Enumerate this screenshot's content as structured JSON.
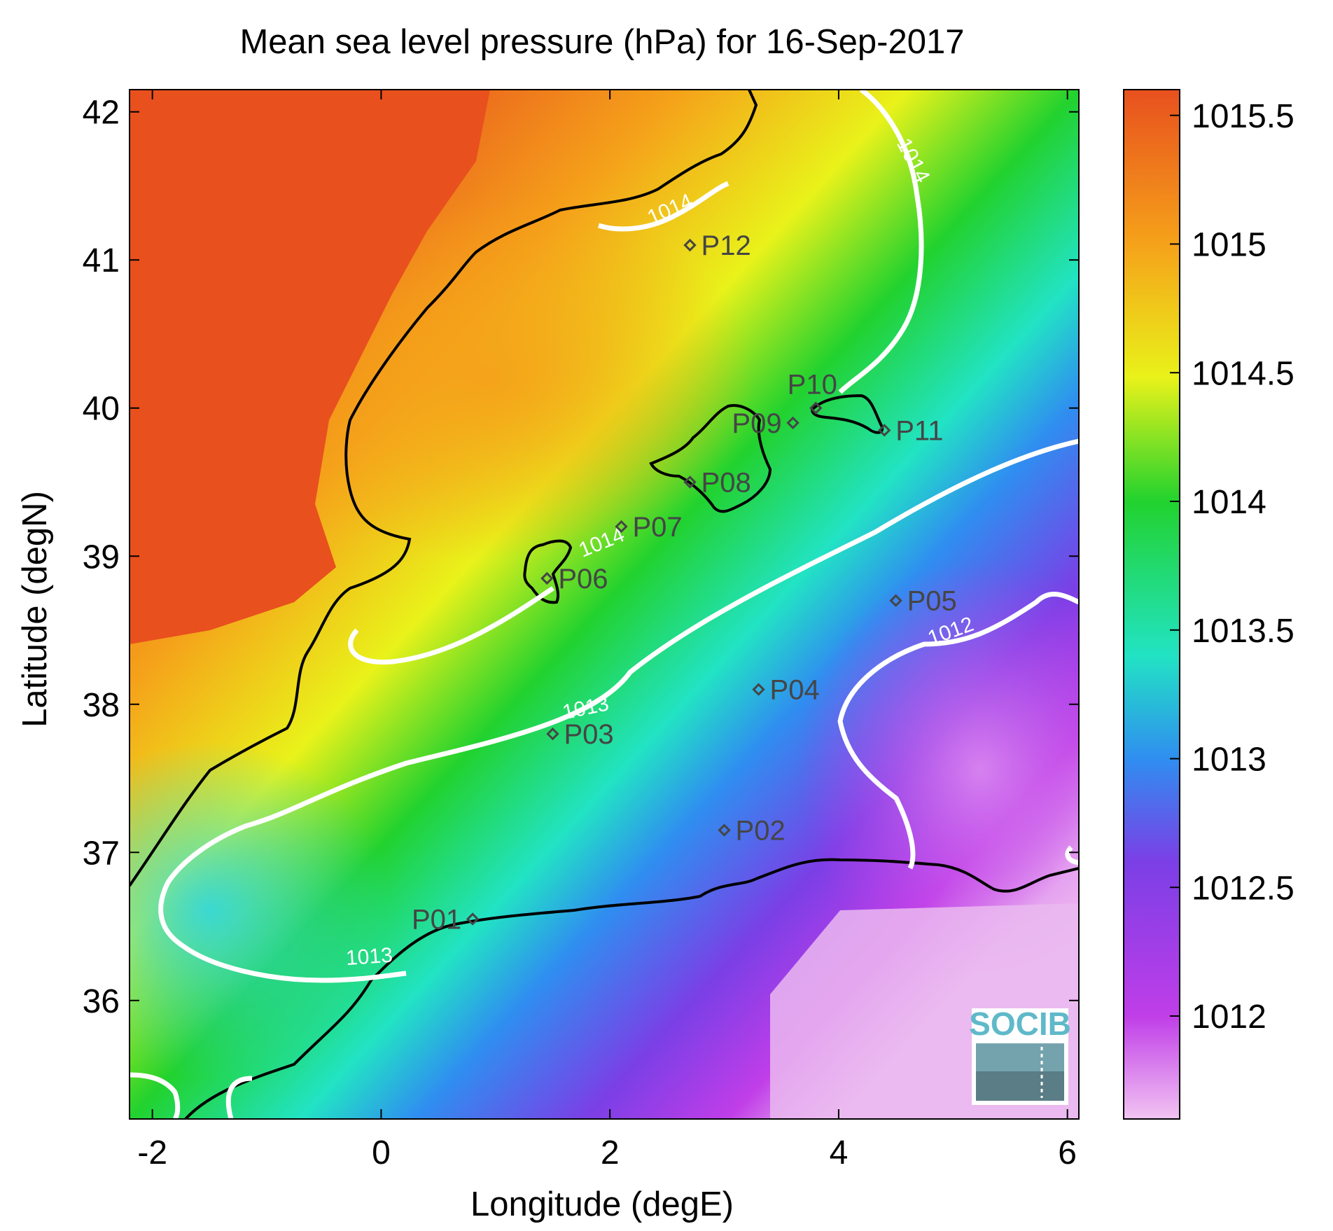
{
  "title": "Mean sea level pressure (hPa) for 16-Sep-2017",
  "x_axis": {
    "label": "Longitude (degE)",
    "range": [
      -2.2,
      6.1
    ],
    "ticks": [
      {
        "value": -2,
        "label": "-2"
      },
      {
        "value": 0,
        "label": "0"
      },
      {
        "value": 2,
        "label": "2"
      },
      {
        "value": 4,
        "label": "4"
      },
      {
        "value": 6,
        "label": "6"
      }
    ]
  },
  "y_axis": {
    "label": "Latitude (degN)",
    "range": [
      35.2,
      42.15
    ],
    "ticks": [
      {
        "value": 36,
        "label": "36"
      },
      {
        "value": 37,
        "label": "37"
      },
      {
        "value": 38,
        "label": "38"
      },
      {
        "value": 39,
        "label": "39"
      },
      {
        "value": 40,
        "label": "40"
      },
      {
        "value": 41,
        "label": "41"
      },
      {
        "value": 42,
        "label": "42"
      }
    ]
  },
  "colorbar": {
    "range": [
      1011.6,
      1015.6
    ],
    "ticks": [
      {
        "value": 1012,
        "label": "1012"
      },
      {
        "value": 1012.5,
        "label": "1012.5"
      },
      {
        "value": 1013,
        "label": "1013"
      },
      {
        "value": 1013.5,
        "label": "1013.5"
      },
      {
        "value": 1014,
        "label": "1014"
      },
      {
        "value": 1014.5,
        "label": "1014.5"
      },
      {
        "value": 1015,
        "label": "1015"
      },
      {
        "value": 1015.5,
        "label": "1015.5"
      }
    ],
    "colors": [
      "#f2c4f2",
      "#c03ee8",
      "#7b3fe6",
      "#2f8ef0",
      "#22e3c4",
      "#22d22e",
      "#e9f21a",
      "#f5a21a",
      "#e8501e"
    ]
  },
  "stations": [
    {
      "id": "P01",
      "lon": 0.8,
      "lat": 36.55,
      "label_side": "left"
    },
    {
      "id": "P02",
      "lon": 3.0,
      "lat": 37.15,
      "label_side": "right"
    },
    {
      "id": "P03",
      "lon": 1.5,
      "lat": 37.8,
      "label_side": "right"
    },
    {
      "id": "P04",
      "lon": 3.3,
      "lat": 38.1,
      "label_side": "right"
    },
    {
      "id": "P05",
      "lon": 4.5,
      "lat": 38.7,
      "label_side": "right"
    },
    {
      "id": "P06",
      "lon": 1.45,
      "lat": 38.85,
      "label_side": "right"
    },
    {
      "id": "P07",
      "lon": 2.1,
      "lat": 39.2,
      "label_side": "right"
    },
    {
      "id": "P08",
      "lon": 2.7,
      "lat": 39.5,
      "label_side": "right"
    },
    {
      "id": "P09",
      "lon": 3.6,
      "lat": 39.9,
      "label_side": "left"
    },
    {
      "id": "P10",
      "lon": 3.8,
      "lat": 40.0,
      "label_side": "above"
    },
    {
      "id": "P11",
      "lon": 4.4,
      "lat": 39.85,
      "label_side": "right"
    },
    {
      "id": "P12",
      "lon": 2.7,
      "lat": 41.1,
      "label_side": "right"
    }
  ],
  "contour_labels": [
    {
      "text": "1014",
      "lon": 2.55,
      "lat": 41.3,
      "angle": -24
    },
    {
      "text": "1014",
      "lon": 4.6,
      "lat": 41.65,
      "angle": 62
    },
    {
      "text": "1014",
      "lon": 1.95,
      "lat": 39.05,
      "angle": -22
    },
    {
      "text": "1013",
      "lon": 1.8,
      "lat": 37.93,
      "angle": -12
    },
    {
      "text": "1013",
      "lon": -0.1,
      "lat": 36.25,
      "angle": -4
    },
    {
      "text": "1012",
      "lon": 5.0,
      "lat": 38.45,
      "angle": -20
    }
  ],
  "logo": {
    "text": "SOCIB"
  }
}
